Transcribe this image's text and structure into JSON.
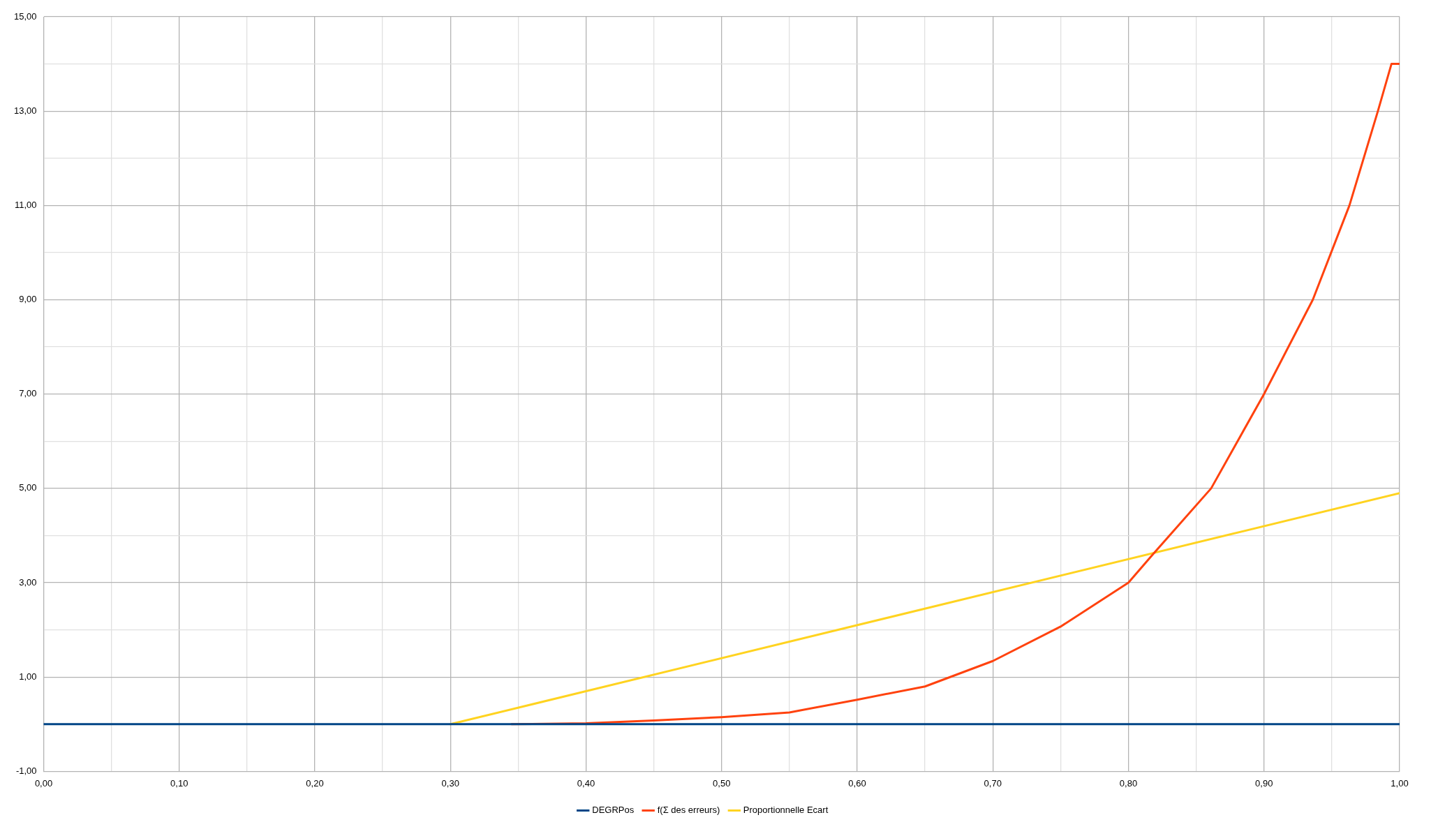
{
  "chart_data": {
    "type": "line",
    "legend": "bottom",
    "grid": true,
    "marker": "none",
    "line_style": "solid",
    "xlim": [
      0,
      1
    ],
    "ylim": [
      -1,
      15
    ],
    "xticks": [
      {
        "value": 0,
        "label": "0,00"
      },
      {
        "value": 0.05,
        "label": null
      },
      {
        "value": 0.1,
        "label": "0,10"
      },
      {
        "value": 0.15,
        "label": null
      },
      {
        "value": 0.2,
        "label": "0,20"
      },
      {
        "value": 0.25,
        "label": null
      },
      {
        "value": 0.3,
        "label": "0,30"
      },
      {
        "value": 0.35,
        "label": null
      },
      {
        "value": 0.4,
        "label": "0,40"
      },
      {
        "value": 0.45,
        "label": null
      },
      {
        "value": 0.5,
        "label": "0,50"
      },
      {
        "value": 0.55,
        "label": null
      },
      {
        "value": 0.6,
        "label": "0,60"
      },
      {
        "value": 0.65,
        "label": null
      },
      {
        "value": 0.7,
        "label": "0,70"
      },
      {
        "value": 0.75,
        "label": null
      },
      {
        "value": 0.8,
        "label": "0,80"
      },
      {
        "value": 0.85,
        "label": null
      },
      {
        "value": 0.9,
        "label": "0,90"
      },
      {
        "value": 0.95,
        "label": null
      },
      {
        "value": 1,
        "label": "1,00"
      }
    ],
    "yticks": [
      {
        "value": -1,
        "label": "-1,00"
      },
      {
        "value": 0,
        "label": null
      },
      {
        "value": 1,
        "label": "1,00"
      },
      {
        "value": 2,
        "label": null
      },
      {
        "value": 3,
        "label": "3,00"
      },
      {
        "value": 4,
        "label": null
      },
      {
        "value": 5,
        "label": "5,00"
      },
      {
        "value": 6,
        "label": null
      },
      {
        "value": 7,
        "label": "7,00"
      },
      {
        "value": 8,
        "label": null
      },
      {
        "value": 9,
        "label": "9,00"
      },
      {
        "value": 10,
        "label": null
      },
      {
        "value": 11,
        "label": "11,00"
      },
      {
        "value": 12,
        "label": null
      },
      {
        "value": 13,
        "label": "13,00"
      },
      {
        "value": 14,
        "label": null
      },
      {
        "value": 15,
        "label": "15,00"
      }
    ],
    "series": [
      {
        "name": "DEGRPos",
        "color": "#004586",
        "x": [
          0,
          1
        ],
        "values": [
          0,
          0
        ]
      },
      {
        "name": "f(Σ des erreurs)",
        "color": "#ff420e",
        "x": [
          0.345,
          0.4,
          0.45,
          0.5,
          0.55,
          0.6,
          0.65,
          0.7,
          0.75,
          0.8,
          0.818,
          0.861,
          0.9,
          0.936,
          0.963,
          0.984,
          0.994,
          1
        ],
        "values": [
          0,
          0.02,
          0.08,
          0.15,
          0.25,
          0.52,
          0.8,
          1.34,
          2.07,
          3,
          3.6,
          5,
          7,
          9,
          11,
          13,
          14,
          14
        ]
      },
      {
        "name": "Proportionnelle Ecart",
        "color": "#ffd320",
        "x": [
          0.3,
          1
        ],
        "values": [
          0,
          4.9
        ]
      }
    ]
  }
}
